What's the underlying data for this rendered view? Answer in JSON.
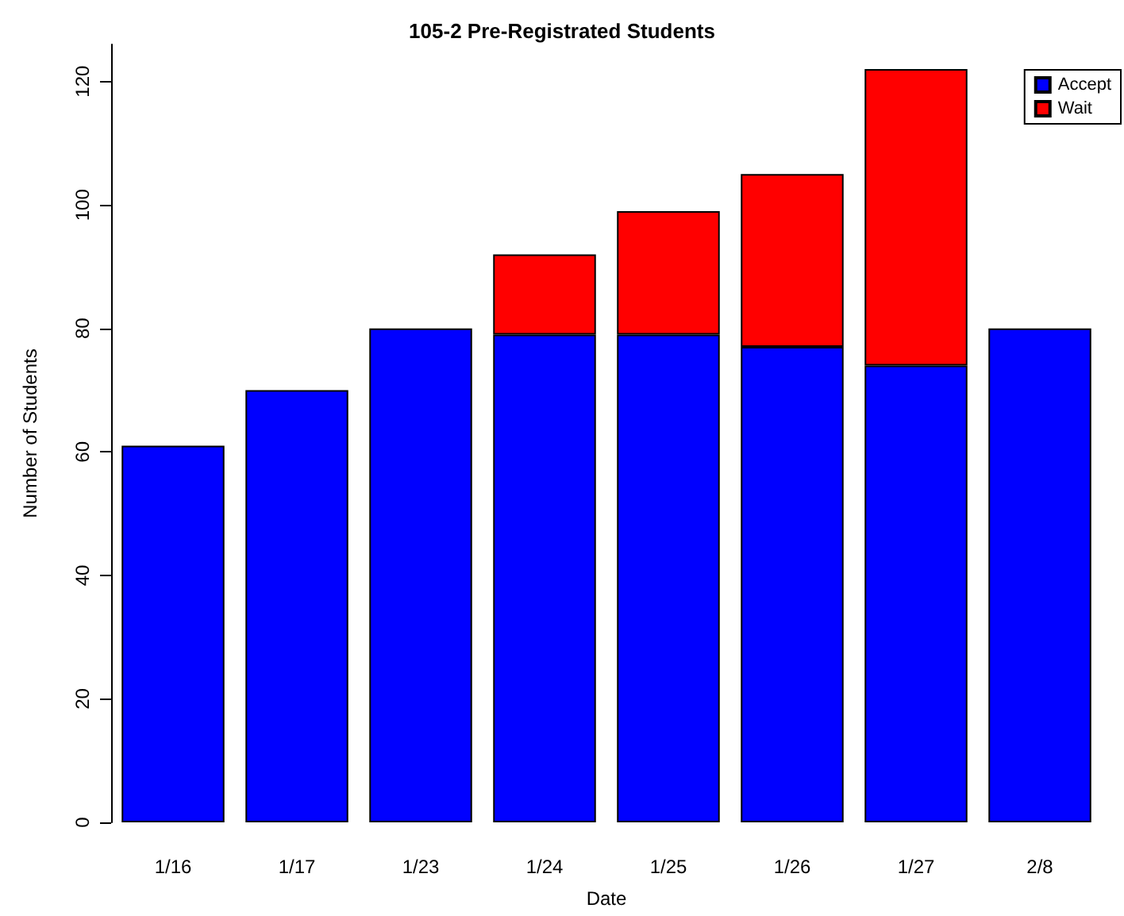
{
  "chart_data": {
    "type": "bar",
    "title": "105-2 Pre-Registrated Students",
    "xlabel": "Date",
    "ylabel": "Number of Students",
    "categories": [
      "1/16",
      "1/17",
      "1/23",
      "1/24",
      "1/25",
      "1/26",
      "1/27",
      "2/8"
    ],
    "series": [
      {
        "name": "Accept",
        "color": "#0000ff",
        "values": [
          61,
          70,
          80,
          79,
          79,
          77,
          74,
          80
        ]
      },
      {
        "name": "Wait",
        "color": "#ff0000",
        "values": [
          null,
          null,
          null,
          13,
          20,
          28,
          48,
          null
        ]
      }
    ],
    "stacked": true,
    "ylim": [
      0,
      126
    ],
    "yticks": [
      0,
      20,
      40,
      60,
      80,
      100,
      120
    ],
    "grid": false,
    "legend": "top right"
  }
}
